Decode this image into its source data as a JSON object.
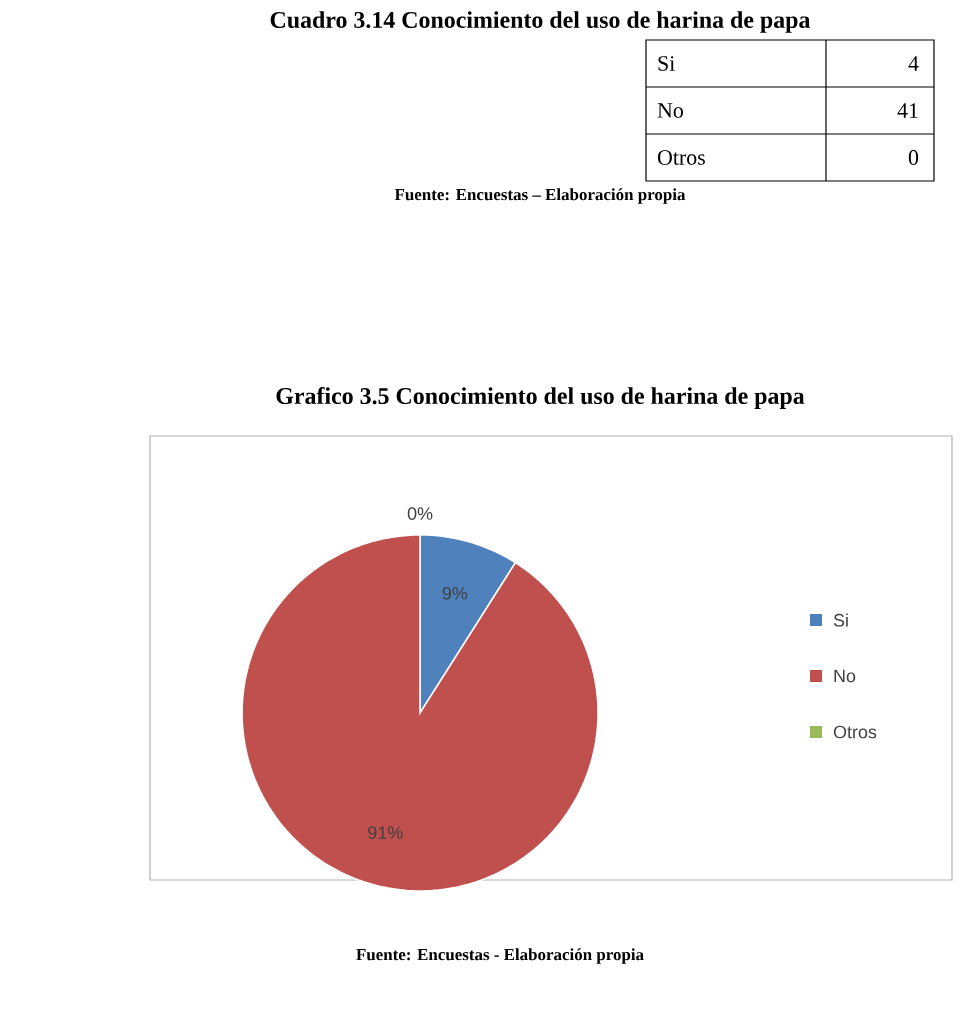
{
  "chart_data": [
    {
      "type": "other",
      "title": "Cuadro 3.14 Conocimiento del uso de harina de papa",
      "categories": [
        "Si",
        "No",
        "Otros"
      ],
      "values": [
        4,
        41,
        0
      ],
      "data_labels": true,
      "annotations": [
        "Fuente: Encuestas – Elaboración propia"
      ]
    },
    {
      "type": "pie",
      "title": "Grafico 3.5 Conocimiento del uso de harina de papa",
      "categories": [
        "Si",
        "No",
        "Otros"
      ],
      "values": [
        9,
        91,
        0
      ],
      "value_labels": [
        "9%",
        "91%",
        "0%"
      ],
      "colors": [
        "#4f81bd",
        "#c0504d",
        "#9bbb59"
      ],
      "legend": "right",
      "annotations": [
        "Fuente: Encuestas -  Elaboración propia"
      ]
    }
  ]
}
